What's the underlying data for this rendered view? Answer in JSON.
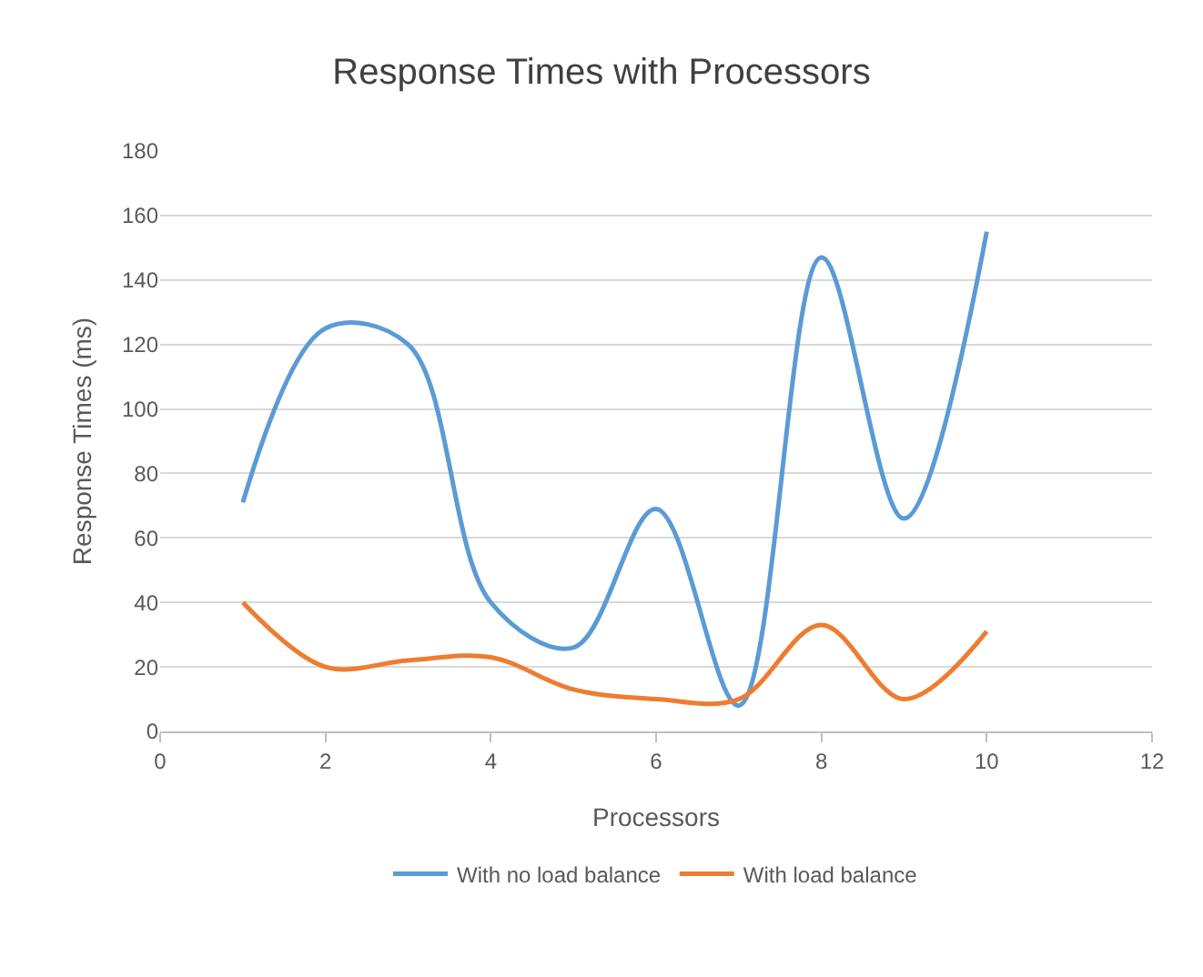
{
  "chart_data": {
    "type": "line",
    "title": "Response Times with Processors",
    "xlabel": "Processors",
    "ylabel": "Response Times (ms)",
    "x": [
      1,
      2,
      3,
      4,
      5,
      6,
      7,
      8,
      9,
      10
    ],
    "series": [
      {
        "name": "With no load balance",
        "color": "#5b9bd5",
        "values": [
          71,
          125,
          120,
          40,
          26,
          69,
          8,
          147,
          66,
          155
        ]
      },
      {
        "name": "With load balance",
        "color": "#ed7d31",
        "values": [
          40,
          20,
          22,
          23,
          13,
          10,
          10,
          33,
          10,
          31
        ]
      }
    ],
    "xlim": [
      0,
      12
    ],
    "xticks": [
      0,
      2,
      4,
      6,
      8,
      10,
      12
    ],
    "ylim": [
      0,
      180
    ],
    "yticks": [
      0,
      20,
      40,
      60,
      80,
      100,
      120,
      140,
      160,
      180
    ],
    "grid": "y",
    "legend": "bottom",
    "marker": "none",
    "line_style": "solid"
  }
}
